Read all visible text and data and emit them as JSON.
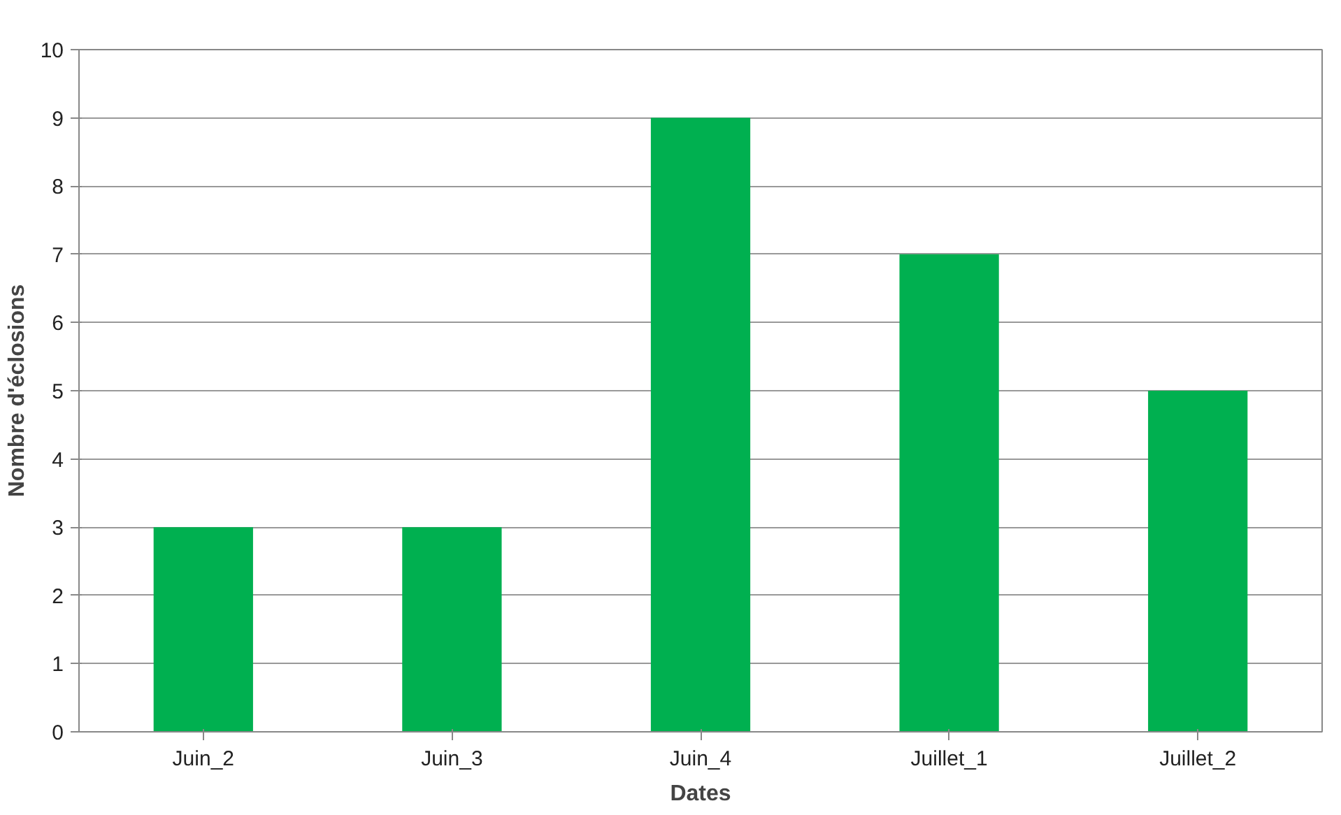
{
  "chart_data": {
    "type": "bar",
    "xlabel": "Dates",
    "ylabel": "Nombre d'éclosions",
    "categories": [
      "Juin_2",
      "Juin_3",
      "Juin_4",
      "Juillet_1",
      "Juillet_2"
    ],
    "values": [
      3,
      3,
      9,
      7,
      5
    ],
    "color": "#00b050",
    "ylim": [
      0,
      10
    ],
    "yticks": [
      0,
      1,
      2,
      3,
      4,
      5,
      6,
      7,
      8,
      9,
      10
    ],
    "grid": "y"
  }
}
